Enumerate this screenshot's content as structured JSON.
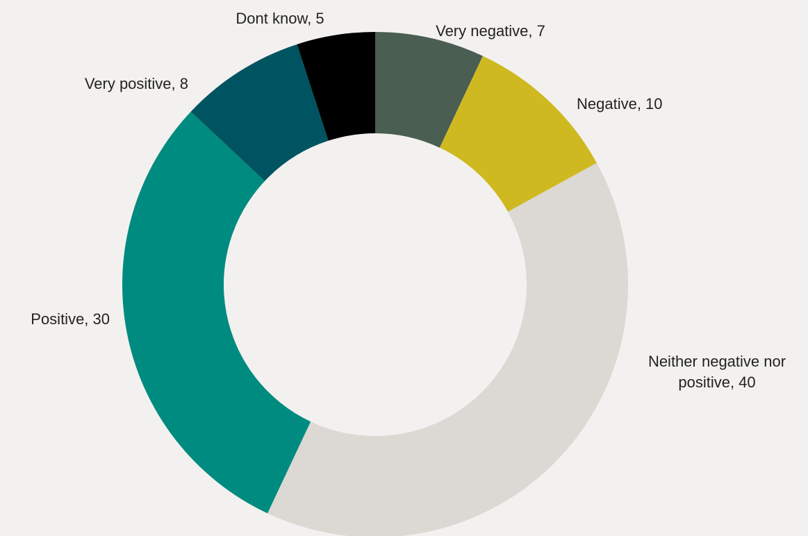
{
  "chart_data": {
    "type": "pie",
    "style": "donut",
    "start_angle_deg": 0,
    "direction": "clockwise",
    "slices": [
      {
        "name": "Very negative",
        "value": 7,
        "label_lines": [
          "Very negative, 7"
        ],
        "color": "#4a5e52"
      },
      {
        "name": "Negative",
        "value": 10,
        "label_lines": [
          "Negative, 10"
        ],
        "color": "#cfb920"
      },
      {
        "name": "Neither negative nor positive",
        "value": 40,
        "label_lines": [
          "Neither negative nor",
          "positive, 40"
        ],
        "color": "#dcd8d3"
      },
      {
        "name": "Positive",
        "value": 30,
        "label_lines": [
          "Positive, 30"
        ],
        "color": "#008b80"
      },
      {
        "name": "Very positive",
        "value": 8,
        "label_lines": [
          "Very positive, 8"
        ],
        "color": "#005461"
      },
      {
        "name": "Dont know",
        "value": 5,
        "label_lines": [
          "Dont know, 5"
        ],
        "color": "#000000"
      }
    ],
    "legend": "none"
  }
}
